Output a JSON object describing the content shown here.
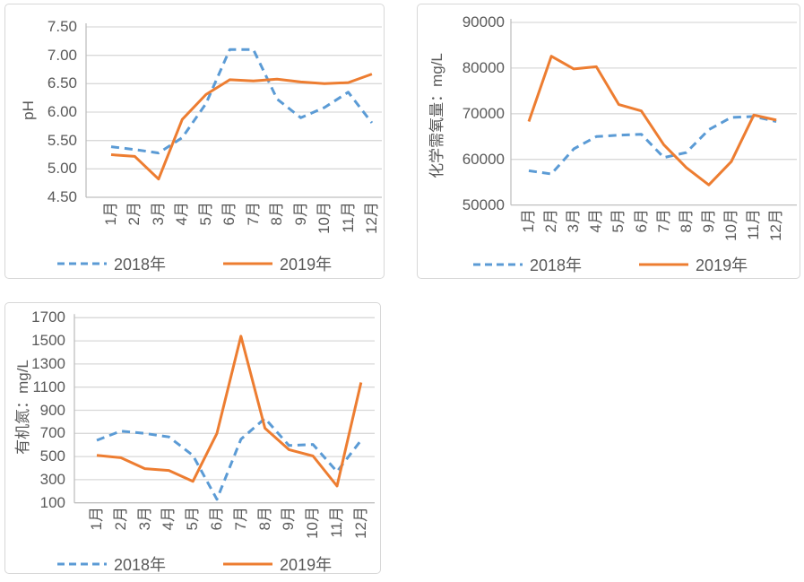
{
  "colors": {
    "series_2018": "#5B9BD5",
    "series_2019": "#ED7D31",
    "gridline": "#D9D9D9",
    "axis": "#BFBFBF",
    "text": "#595959",
    "panel_border": "#D7D7D7",
    "background": "#FFFFFF"
  },
  "months": [
    "1月",
    "2月",
    "3月",
    "4月",
    "5月",
    "6月",
    "7月",
    "8月",
    "9月",
    "10月",
    "11月",
    "12月"
  ],
  "legend": {
    "series": [
      "2018年",
      "2019年"
    ]
  },
  "chart_data": [
    {
      "type": "line",
      "title": "",
      "xlabel": "",
      "ylabel": "pH",
      "categories": [
        "1月",
        "2月",
        "3月",
        "4月",
        "5月",
        "6月",
        "7月",
        "8月",
        "9月",
        "10月",
        "11月",
        "12月"
      ],
      "ylim": [
        4.5,
        7.5
      ],
      "ytick_step": 0.5,
      "grid": true,
      "legend_position": "bottom",
      "yticks": {
        "labels": [
          "7.50",
          "7.00",
          "6.50",
          "6.00",
          "5.50",
          "5.00",
          "4.50"
        ],
        "values": [
          7.5,
          7.0,
          6.5,
          6.0,
          5.5,
          5.0,
          4.5
        ]
      },
      "series": [
        {
          "name": "2018年",
          "color": "#5B9BD5",
          "line_style": "dashed",
          "values": [
            5.39,
            5.34,
            5.28,
            5.55,
            6.15,
            7.1,
            7.1,
            6.23,
            5.9,
            6.08,
            6.35,
            5.81
          ]
        },
        {
          "name": "2019年",
          "color": "#ED7D31",
          "line_style": "solid",
          "values": [
            5.25,
            5.22,
            4.82,
            5.87,
            6.31,
            6.57,
            6.55,
            6.58,
            6.53,
            6.5,
            6.52,
            6.67
          ]
        }
      ]
    },
    {
      "type": "line",
      "title": "",
      "xlabel": "",
      "ylabel": "化学需氧量：mg/L",
      "categories": [
        "1月",
        "2月",
        "3月",
        "4月",
        "5月",
        "6月",
        "7月",
        "8月",
        "9月",
        "10月",
        "11月",
        "12月"
      ],
      "ylim": [
        50000,
        90000
      ],
      "ytick_step": 10000,
      "grid": true,
      "legend_position": "bottom",
      "yticks": {
        "labels": [
          "90000",
          "80000",
          "70000",
          "60000",
          "50000"
        ],
        "values": [
          90000,
          80000,
          70000,
          60000,
          50000
        ]
      },
      "series": [
        {
          "name": "2018年",
          "color": "#5B9BD5",
          "line_style": "dashed",
          "values": [
            57500,
            56800,
            62300,
            65000,
            65300,
            65500,
            60400,
            61500,
            66500,
            69200,
            69400,
            68300
          ]
        },
        {
          "name": "2019年",
          "color": "#ED7D31",
          "line_style": "solid",
          "values": [
            68300,
            82600,
            79800,
            80300,
            72000,
            70600,
            63200,
            58200,
            54400,
            59500,
            69700,
            68600
          ]
        }
      ]
    },
    {
      "type": "line",
      "title": "",
      "xlabel": "",
      "ylabel": "有机氮：mg/L",
      "categories": [
        "1月",
        "2月",
        "3月",
        "4月",
        "5月",
        "6月",
        "7月",
        "8月",
        "9月",
        "10月",
        "11月",
        "12月"
      ],
      "ylim": [
        100,
        1700
      ],
      "ytick_step": 200,
      "grid": true,
      "legend_position": "bottom",
      "yticks": {
        "labels": [
          "1700",
          "1500",
          "1300",
          "1100",
          "900",
          "700",
          "500",
          "300",
          "100"
        ],
        "values": [
          1700,
          1500,
          1300,
          1100,
          900,
          700,
          500,
          300,
          100
        ]
      },
      "series": [
        {
          "name": "2018年",
          "color": "#5B9BD5",
          "line_style": "dashed",
          "values": [
            640,
            720,
            700,
            670,
            510,
            130,
            650,
            830,
            595,
            605,
            370,
            640
          ]
        },
        {
          "name": "2019年",
          "color": "#ED7D31",
          "line_style": "solid",
          "values": [
            510,
            490,
            395,
            380,
            285,
            700,
            1540,
            745,
            560,
            505,
            245,
            1140
          ]
        }
      ]
    }
  ]
}
